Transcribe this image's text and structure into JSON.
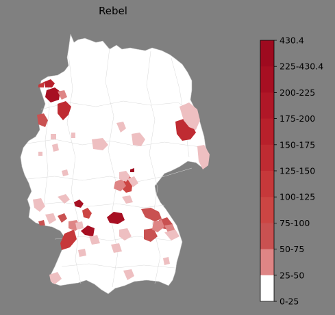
{
  "title": "Rebel",
  "legend": {
    "labels": [
      "430.4",
      "225-430.4",
      "200-225",
      "175-200",
      "150-175",
      "125-150",
      "100-125",
      "75-100",
      "50-75",
      "25-50",
      "0-25"
    ],
    "colors": [
      "#9e0a1f",
      "#a70f22",
      "#b01727",
      "#b8202b",
      "#bf2b32",
      "#c6383a",
      "#cc4543",
      "#c95151",
      "#de8585",
      "#eebfc1",
      "#ffffff"
    ],
    "placement": "right"
  },
  "map": {
    "subject": "germany-districts",
    "base_color": "#ffffff",
    "border_color": "#bfbfbf"
  }
}
